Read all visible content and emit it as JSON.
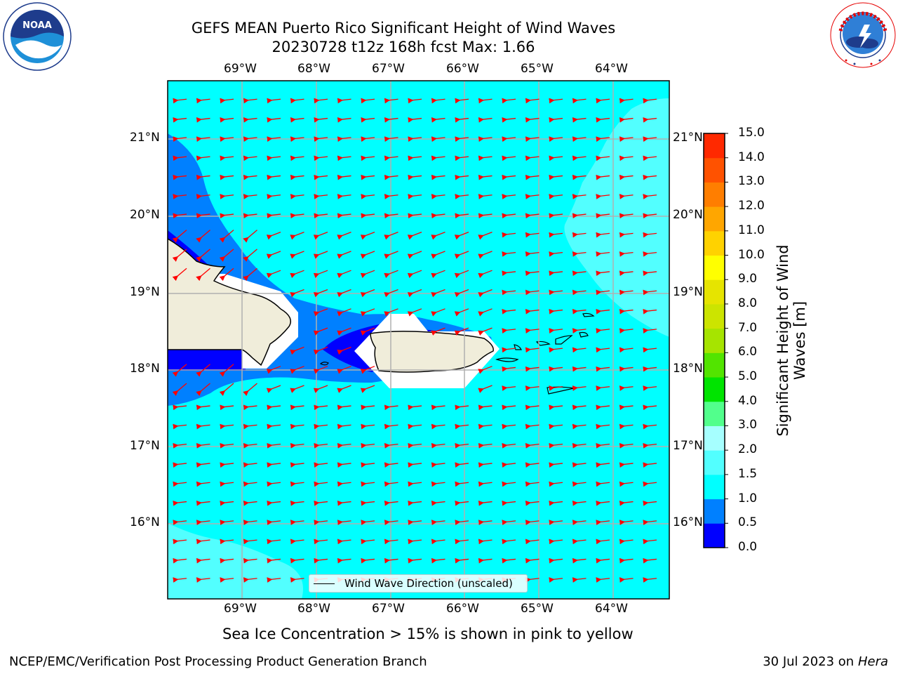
{
  "title": {
    "line1": "GEFS MEAN Puerto Rico Significant Height of Wind Waves",
    "line2": "20230728 t12z 168h fcst   Max: 1.66"
  },
  "logos": {
    "noara_text": "NOAA",
    "noaa_ring": "NATIONAL OCEANIC AND ATMOSPHERIC ADMINISTRATION · U.S. DEPARTMENT OF COMMERCE",
    "nws_ring": "NATIONAL WEATHER SERVICE"
  },
  "map": {
    "lon_labels": [
      "69°W",
      "68°W",
      "67°W",
      "66°W",
      "65°W",
      "64°W"
    ],
    "lat_labels": [
      "21°N",
      "20°N",
      "19°N",
      "18°N",
      "17°N",
      "16°N"
    ],
    "legend_label": "Wind Wave Direction (unscaled)",
    "arrow_color": "#ff0000",
    "colors": {
      "ocean_base": "#00ffff",
      "band_0_5_1": "#0080ff",
      "band_0_0_5": "#0000ff",
      "band_1_5_2": "#52ffff",
      "land": "#f0edda",
      "grid": "#b0b0b0"
    }
  },
  "colorbar": {
    "title": "Significant Height of Wind Waves [m]",
    "ticks": [
      "0.0",
      "0.5",
      "1.0",
      "1.5",
      "2.0",
      "3.0",
      "4.0",
      "5.0",
      "6.0",
      "7.0",
      "8.0",
      "9.0",
      "10.0",
      "11.0",
      "12.0",
      "13.0",
      "14.0",
      "15.0"
    ],
    "colors": [
      "#0000ff",
      "#0080ff",
      "#00ffff",
      "#52ffff",
      "#a6ffff",
      "#52ff8c",
      "#00e400",
      "#52e400",
      "#a6e400",
      "#cce400",
      "#e6e400",
      "#ffff00",
      "#ffd200",
      "#ffa600",
      "#ff7e00",
      "#ff5200",
      "#ff2900",
      "#ff0000"
    ]
  },
  "footer": {
    "subtitle": "Sea Ice Concentration > 15% is shown in pink to yellow",
    "left": "NCEP/EMC/Verification Post Processing Product Generation Branch",
    "date": "30 Jul 2023 on",
    "machine": "Hera"
  }
}
